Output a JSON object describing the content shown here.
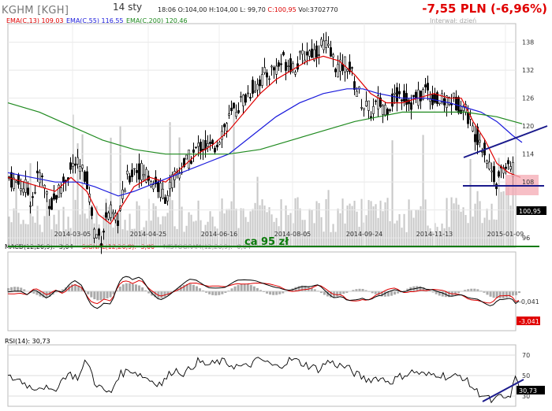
{
  "header": {
    "ticker": "KGHM [KGH]",
    "date": "14 sty",
    "time": "18:06",
    "open": "O:104,00",
    "high": "H:104,00",
    "low": "L: 99,70",
    "close": "C:100,95",
    "volume": "Vol:3702770",
    "change": "-7,55 PLN (-6,96%)",
    "interval": "Interwał: dzień"
  },
  "colors": {
    "candle": "#000000",
    "ema13": "#e00000",
    "ema55": "#1a1adc",
    "ema200": "#1f8a1f",
    "volume": "#bbbbbb",
    "annotation": "#1a1a8c",
    "zone": "#f4a9b3",
    "support": "#0a7a0a"
  },
  "chart_data": [
    {
      "type": "candlestick",
      "title": "KGHM [KGH]",
      "legend": [
        "EMA(C,13) 109,03",
        "EMA(C,55) 116,55",
        "EMA(C,200) 120,46"
      ],
      "x_tick_labels": [
        "2014-03-05",
        "2014-04-25",
        "2014-06-16",
        "2014-08-05",
        "2014-09-24",
        "2014-11-13",
        "2015-01-09"
      ],
      "y_tick_labels": [
        "96",
        "102",
        "108",
        "114",
        "120",
        "126",
        "132",
        "138"
      ],
      "ylim": [
        94,
        142
      ],
      "last_price_label": "100,95",
      "annotation": "ca 95 zł",
      "close_path": [
        [
          0,
          109
        ],
        [
          10,
          108
        ],
        [
          22,
          107
        ],
        [
          30,
          104
        ],
        [
          40,
          110
        ],
        [
          55,
          103
        ],
        [
          70,
          108
        ],
        [
          85,
          112
        ],
        [
          100,
          109
        ],
        [
          110,
          97
        ],
        [
          118,
          96
        ],
        [
          128,
          102
        ],
        [
          138,
          99
        ],
        [
          150,
          108
        ],
        [
          160,
          111
        ],
        [
          175,
          110
        ],
        [
          190,
          107
        ],
        [
          200,
          105
        ],
        [
          215,
          110
        ],
        [
          230,
          113
        ],
        [
          245,
          116
        ],
        [
          260,
          115
        ],
        [
          275,
          120
        ],
        [
          290,
          124
        ],
        [
          305,
          127
        ],
        [
          320,
          130
        ],
        [
          335,
          132
        ],
        [
          350,
          134
        ],
        [
          365,
          133
        ],
        [
          380,
          136
        ],
        [
          390,
          136
        ],
        [
          400,
          138
        ],
        [
          410,
          135
        ],
        [
          420,
          132
        ],
        [
          430,
          134
        ],
        [
          440,
          129
        ],
        [
          450,
          125
        ],
        [
          460,
          123
        ],
        [
          470,
          125
        ],
        [
          480,
          124
        ],
        [
          490,
          126
        ],
        [
          500,
          127
        ],
        [
          510,
          125
        ],
        [
          520,
          126
        ],
        [
          530,
          128
        ],
        [
          540,
          126
        ],
        [
          550,
          125
        ],
        [
          560,
          126
        ],
        [
          570,
          125
        ],
        [
          580,
          124
        ],
        [
          590,
          119
        ],
        [
          600,
          117
        ],
        [
          610,
          112
        ],
        [
          620,
          108
        ],
        [
          630,
          112
        ],
        [
          640,
          111
        ],
        [
          645,
          108
        ],
        [
          650,
          101
        ]
      ],
      "series": [
        {
          "name": "EMA(C,13)",
          "path": [
            [
              0,
              109
            ],
            [
              20,
              108
            ],
            [
              40,
              107
            ],
            [
              60,
              106
            ],
            [
              80,
              109
            ],
            [
              100,
              106
            ],
            [
              115,
              101
            ],
            [
              130,
              99
            ],
            [
              145,
              103
            ],
            [
              160,
              107
            ],
            [
              180,
              109
            ],
            [
              200,
              108
            ],
            [
              220,
              111
            ],
            [
              240,
              114
            ],
            [
              260,
              116
            ],
            [
              280,
              119
            ],
            [
              300,
              123
            ],
            [
              320,
              127
            ],
            [
              340,
              130
            ],
            [
              360,
              132
            ],
            [
              380,
              134
            ],
            [
              400,
              135
            ],
            [
              420,
              134
            ],
            [
              440,
              131
            ],
            [
              460,
              127
            ],
            [
              480,
              125
            ],
            [
              500,
              125
            ],
            [
              520,
              126
            ],
            [
              540,
              127
            ],
            [
              560,
              126
            ],
            [
              575,
              126
            ],
            [
              590,
              121
            ],
            [
              605,
              117
            ],
            [
              620,
              112
            ],
            [
              635,
              110
            ],
            [
              650,
              109
            ]
          ]
        },
        {
          "name": "EMA(C,55)",
          "path": [
            [
              0,
              110
            ],
            [
              30,
              109
            ],
            [
              60,
              108
            ],
            [
              90,
              108
            ],
            [
              110,
              107
            ],
            [
              140,
              105
            ],
            [
              160,
              106
            ],
            [
              190,
              108
            ],
            [
              220,
              110
            ],
            [
              250,
              112
            ],
            [
              280,
              114
            ],
            [
              310,
              118
            ],
            [
              340,
              122
            ],
            [
              370,
              125
            ],
            [
              400,
              127
            ],
            [
              430,
              128
            ],
            [
              450,
              128
            ],
            [
              470,
              127
            ],
            [
              500,
              126
            ],
            [
              530,
              126
            ],
            [
              560,
              125
            ],
            [
              580,
              124
            ],
            [
              600,
              123
            ],
            [
              620,
              121
            ],
            [
              640,
              118
            ],
            [
              652,
              116.5
            ]
          ]
        },
        {
          "name": "EMA(C,200)",
          "path": [
            [
              0,
              125
            ],
            [
              40,
              123
            ],
            [
              80,
              120
            ],
            [
              120,
              117
            ],
            [
              160,
              115
            ],
            [
              200,
              114
            ],
            [
              240,
              114
            ],
            [
              280,
              114
            ],
            [
              320,
              115
            ],
            [
              360,
              117
            ],
            [
              400,
              119
            ],
            [
              440,
              121
            ],
            [
              470,
              122
            ],
            [
              500,
              123
            ],
            [
              540,
              123
            ],
            [
              580,
              123
            ],
            [
              620,
              122
            ],
            [
              652,
              120.5
            ]
          ]
        }
      ]
    },
    {
      "type": "line",
      "title": "MACD(12,26,9): -3,04",
      "legend": [
        "MACD(12,26,9): -3,04",
        "SIGNAL(12,26,9): -3,00",
        "HISTOGRAM(12,26,9): -0,04"
      ],
      "right_labels": [
        "-0,041",
        "-3,041"
      ]
    },
    {
      "type": "line",
      "title": "RSI(14): 30,73",
      "y_tick_labels": [
        "30",
        "50",
        "70"
      ],
      "ylim": [
        20,
        80
      ],
      "right_labels": [
        "30,73"
      ],
      "series": [
        {
          "name": "RSI(14)",
          "path": [
            [
              0,
              48
            ],
            [
              15,
              46
            ],
            [
              30,
              38
            ],
            [
              45,
              40
            ],
            [
              55,
              33
            ],
            [
              65,
              42
            ],
            [
              75,
              52
            ],
            [
              90,
              48
            ],
            [
              100,
              66
            ],
            [
              110,
              44
            ],
            [
              120,
              36
            ],
            [
              130,
              32
            ],
            [
              140,
              50
            ],
            [
              155,
              56
            ],
            [
              170,
              50
            ],
            [
              185,
              44
            ],
            [
              195,
              42
            ],
            [
              210,
              56
            ],
            [
              225,
              52
            ],
            [
              240,
              64
            ],
            [
              255,
              60
            ],
            [
              270,
              64
            ],
            [
              285,
              60
            ],
            [
              300,
              58
            ],
            [
              320,
              66
            ],
            [
              340,
              58
            ],
            [
              360,
              66
            ],
            [
              380,
              60
            ],
            [
              395,
              56
            ],
            [
              405,
              64
            ],
            [
              420,
              60
            ],
            [
              430,
              58
            ],
            [
              440,
              52
            ],
            [
              455,
              46
            ],
            [
              470,
              48
            ],
            [
              485,
              44
            ],
            [
              500,
              50
            ],
            [
              515,
              54
            ],
            [
              530,
              50
            ],
            [
              545,
              52
            ],
            [
              560,
              48
            ],
            [
              575,
              50
            ],
            [
              585,
              42
            ],
            [
              595,
              34
            ],
            [
              605,
              30
            ],
            [
              615,
              24
            ],
            [
              625,
              30
            ],
            [
              635,
              26
            ],
            [
              645,
              50
            ],
            [
              652,
              30.73
            ]
          ]
        }
      ]
    }
  ]
}
